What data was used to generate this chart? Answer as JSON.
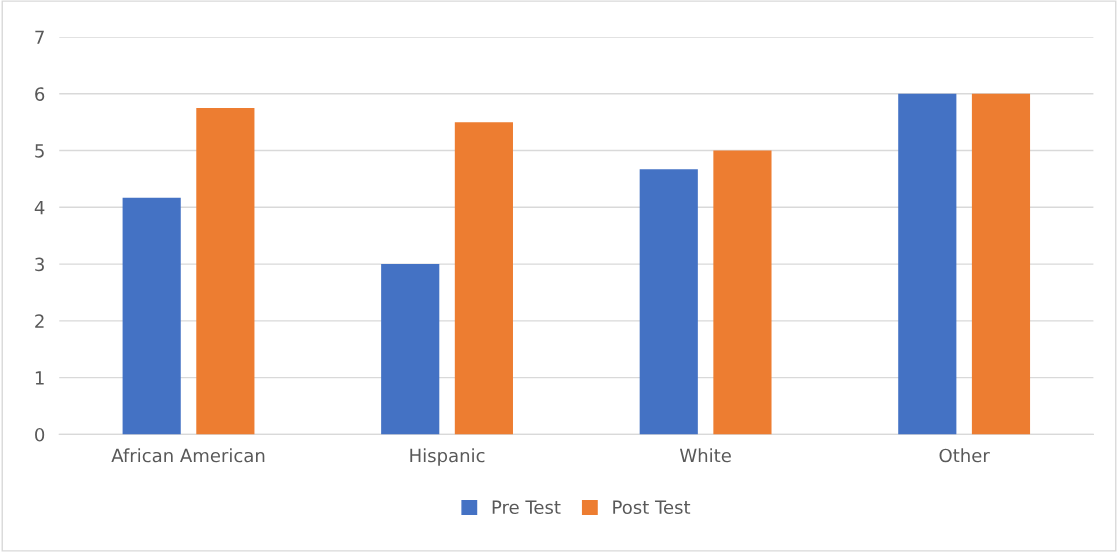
{
  "chart_data": {
    "type": "bar",
    "categories": [
      "African American",
      "Hispanic",
      "White",
      "Other"
    ],
    "series": [
      {
        "name": "Pre Test",
        "color": "#4472c4",
        "values": [
          4.17,
          3,
          4.67,
          6
        ]
      },
      {
        "name": "Post Test",
        "color": "#ed7d31",
        "values": [
          5.75,
          5.5,
          5,
          6
        ]
      }
    ],
    "ylim": [
      0,
      7
    ],
    "yticks": [
      0,
      1,
      2,
      3,
      4,
      5,
      6,
      7
    ],
    "grid": "y",
    "legend": "bottom"
  }
}
